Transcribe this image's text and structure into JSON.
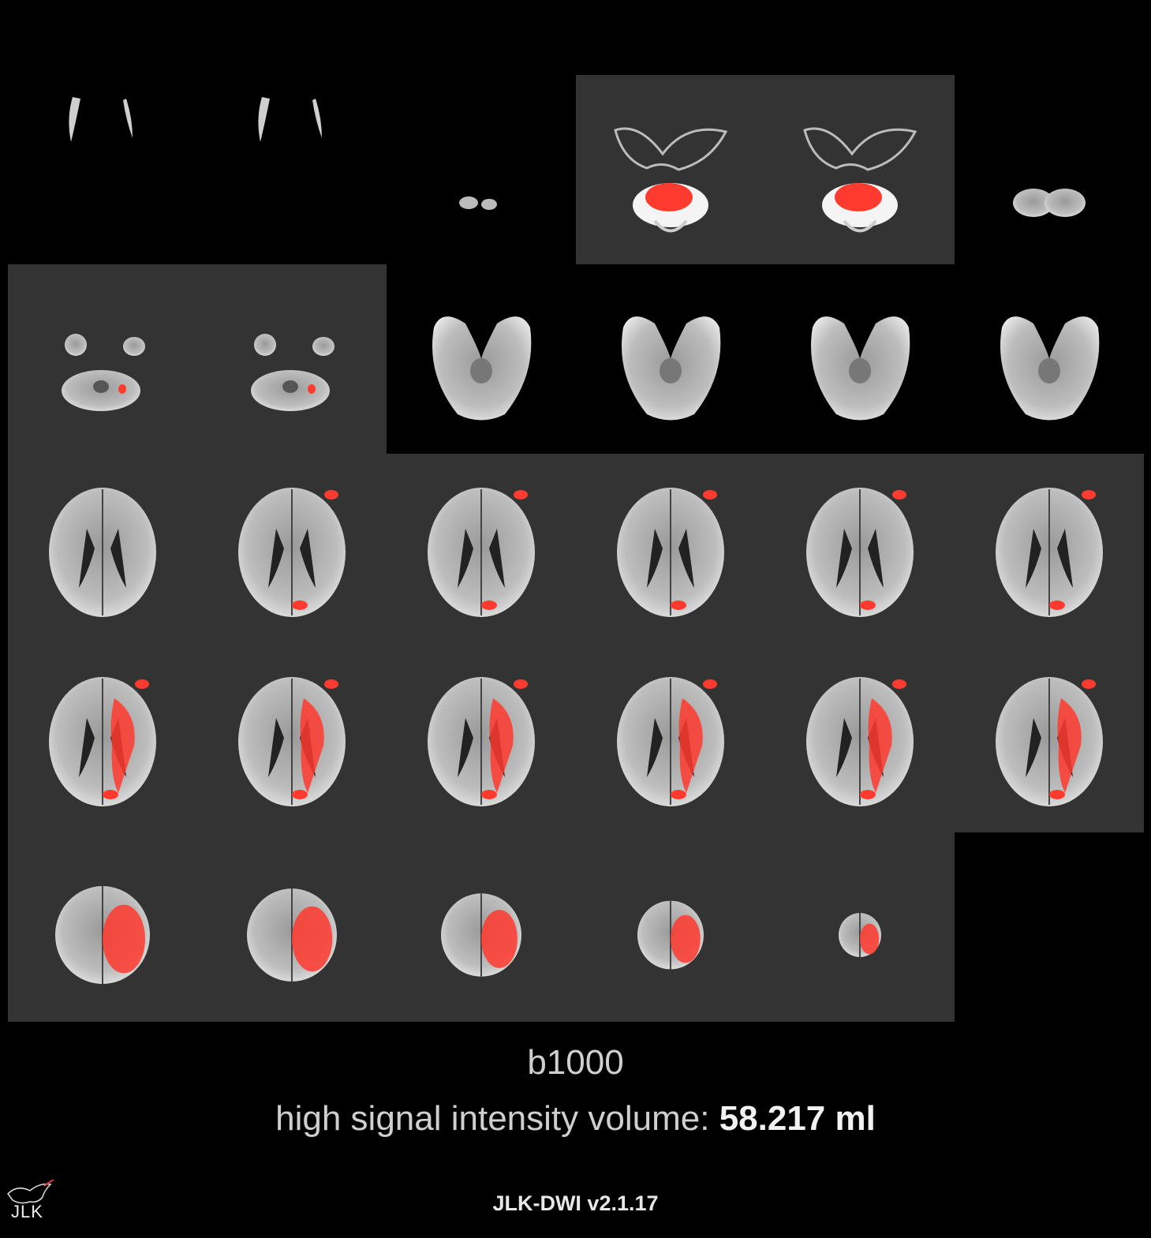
{
  "sequence_label": "b1000",
  "volume_label": "high signal intensity volume:",
  "volume_value": "58.217 ml",
  "version": "JLK-DWI v2.1.17",
  "logo_text": "JLK",
  "colors": {
    "background": "#000000",
    "highlight_panel": "#333333",
    "lesion": "#ff3a2e"
  },
  "slices": [
    {
      "index": 1,
      "kind": "lowskull",
      "lesion": 0
    },
    {
      "index": 2,
      "kind": "lowskull",
      "lesion": 0
    },
    {
      "index": 3,
      "kind": "tiny",
      "lesion": 0
    },
    {
      "index": 4,
      "kind": "cerebellum",
      "lesion": 3
    },
    {
      "index": 5,
      "kind": "cerebellum",
      "lesion": 3
    },
    {
      "index": 6,
      "kind": "smallcereb",
      "lesion": 0
    },
    {
      "index": 7,
      "kind": "posterior",
      "lesion": 1
    },
    {
      "index": 8,
      "kind": "posterior",
      "lesion": 1
    },
    {
      "index": 9,
      "kind": "temporal",
      "lesion": 0
    },
    {
      "index": 10,
      "kind": "temporal",
      "lesion": 0
    },
    {
      "index": 11,
      "kind": "temporal",
      "lesion": 0
    },
    {
      "index": 12,
      "kind": "temporal",
      "lesion": 0
    },
    {
      "index": 13,
      "kind": "axial",
      "lesion": 0
    },
    {
      "index": 14,
      "kind": "axial",
      "lesion": 1
    },
    {
      "index": 15,
      "kind": "axial",
      "lesion": 1
    },
    {
      "index": 16,
      "kind": "axial",
      "lesion": 1
    },
    {
      "index": 17,
      "kind": "axial",
      "lesion": 1
    },
    {
      "index": 18,
      "kind": "axial",
      "lesion": 1
    },
    {
      "index": 19,
      "kind": "axial",
      "lesion": 2
    },
    {
      "index": 20,
      "kind": "axial",
      "lesion": 2
    },
    {
      "index": 21,
      "kind": "axial",
      "lesion": 2
    },
    {
      "index": 22,
      "kind": "axial",
      "lesion": 2
    },
    {
      "index": 23,
      "kind": "axial",
      "lesion": 2
    },
    {
      "index": 24,
      "kind": "axial",
      "lesion": 2
    },
    {
      "index": 25,
      "kind": "vertex",
      "lesion": 3
    },
    {
      "index": 26,
      "kind": "vertex",
      "lesion": 3
    },
    {
      "index": 27,
      "kind": "vertex",
      "lesion": 3
    },
    {
      "index": 28,
      "kind": "vertex",
      "lesion": 3
    },
    {
      "index": 29,
      "kind": "vertex",
      "lesion": 3
    }
  ]
}
